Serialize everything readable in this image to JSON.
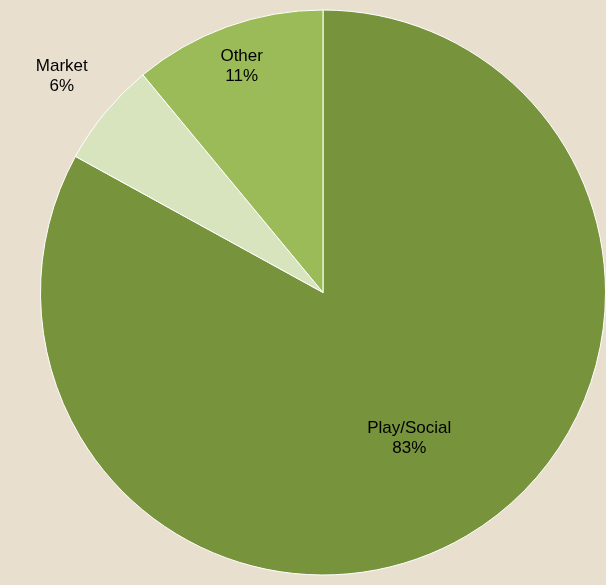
{
  "chart_data": {
    "type": "pie",
    "categories": [
      "Play/Social",
      "Market",
      "Other"
    ],
    "values": [
      83,
      6,
      11
    ],
    "value_labels": [
      "83%",
      "6%",
      "11%"
    ],
    "colors": [
      "#77933c",
      "#d7e4bd",
      "#9bbb59"
    ],
    "data_labels": true
  }
}
